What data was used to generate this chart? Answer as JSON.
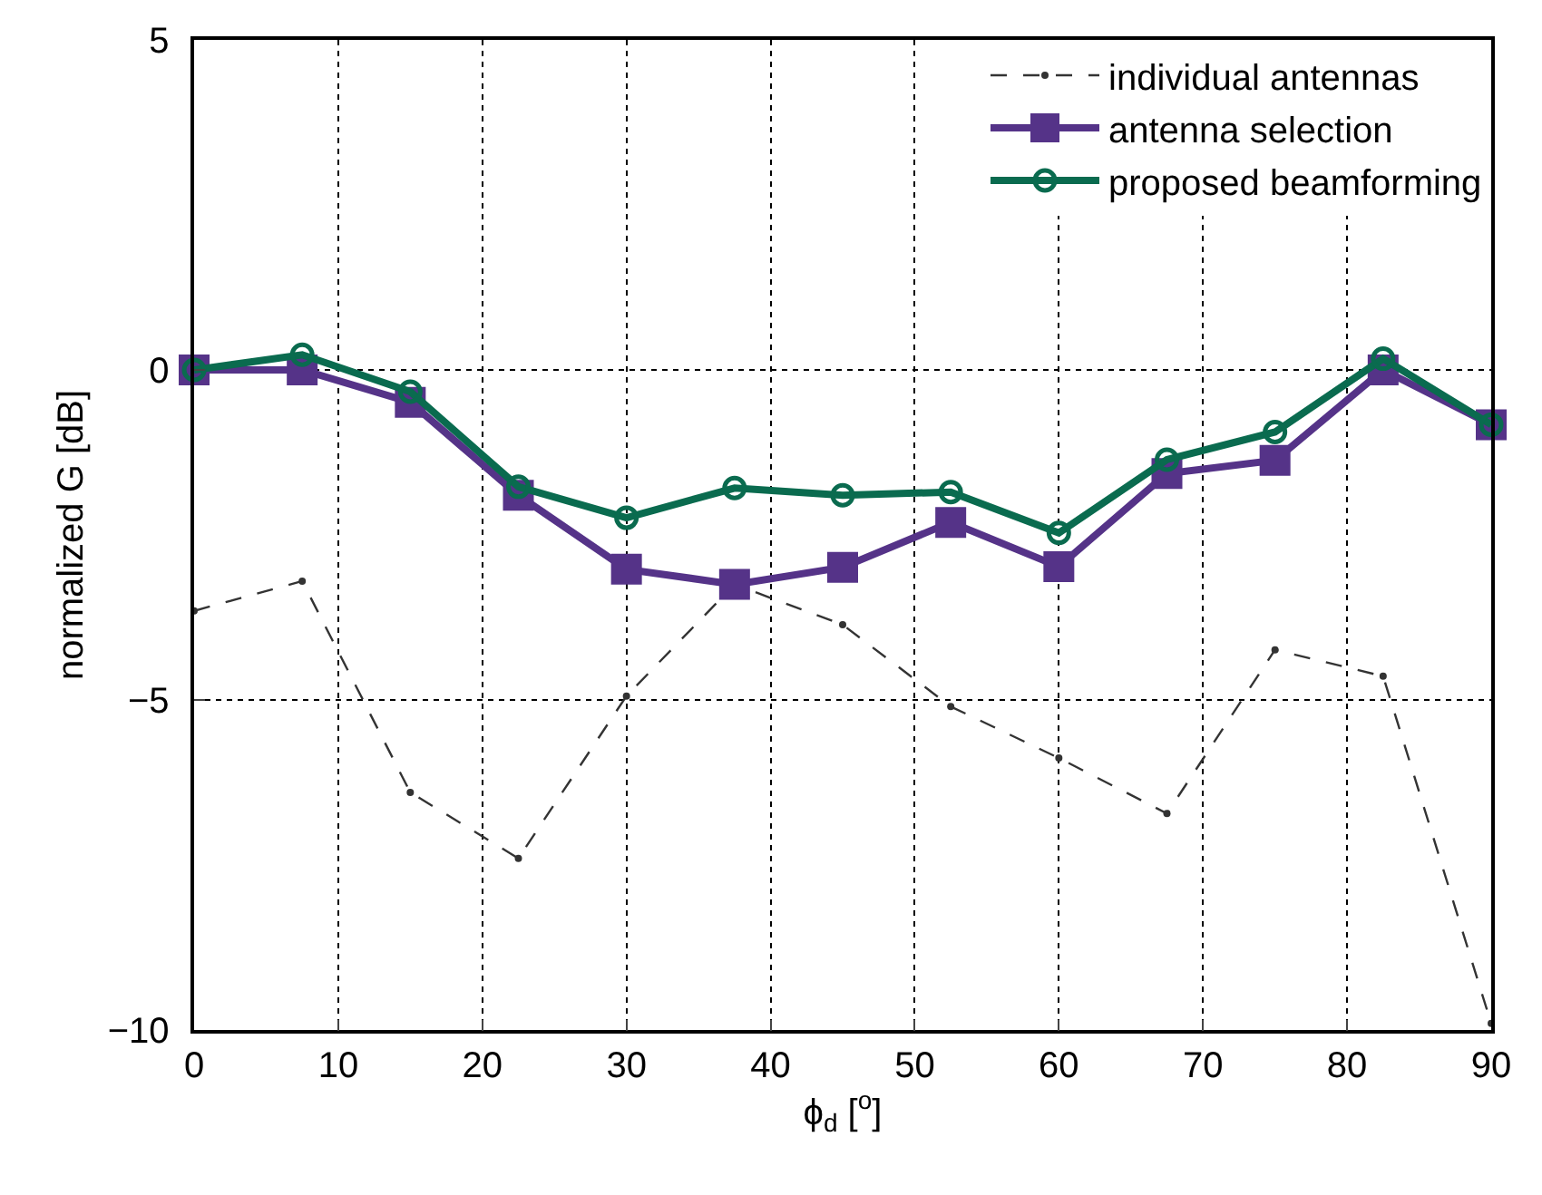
{
  "chart_data": {
    "type": "line",
    "xlabel": "ϕ$_{d}$ [$^{o}$]",
    "ylabel": "normalized G [dB]",
    "x": [
      0,
      7.5,
      15,
      22.5,
      30,
      37.5,
      45,
      52.5,
      60,
      67.5,
      75,
      82.5,
      90
    ],
    "series": [
      {
        "name": "individual antennas",
        "color": "#333333",
        "marker": "circle",
        "line_style": "dashed",
        "values": [
          -3.65,
          -3.2,
          -6.4,
          -7.4,
          -4.94,
          -3.25,
          -3.86,
          -5.1,
          -5.88,
          -6.72,
          -4.24,
          -4.64,
          -9.9
        ]
      },
      {
        "name": "antenna selection",
        "color": "#553388",
        "marker": "square",
        "line_style": "solid",
        "values": [
          0,
          0,
          -0.49,
          -1.9,
          -3.02,
          -3.25,
          -2.99,
          -2.31,
          -2.98,
          -1.57,
          -1.37,
          0,
          -0.83
        ]
      },
      {
        "name": "proposed beamforming",
        "color": "#0a6b4f",
        "marker": "circle",
        "line_style": "solid",
        "values": [
          0,
          0.23,
          -0.33,
          -1.77,
          -2.24,
          -1.79,
          -1.9,
          -1.85,
          -2.47,
          -1.36,
          -0.94,
          0.17,
          -0.83
        ]
      }
    ],
    "xlim": [
      0,
      90
    ],
    "xticks": [
      0,
      10,
      20,
      30,
      40,
      50,
      60,
      70,
      80,
      90
    ],
    "ylim": [
      -10,
      5
    ],
    "yticks": [
      -10,
      -5,
      0,
      5
    ],
    "grid": true,
    "legend": "top right"
  }
}
